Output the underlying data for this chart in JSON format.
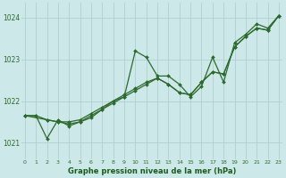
{
  "bg_color": "#cce8e8",
  "grid_color": "#b0d0d0",
  "line_color": "#2d6a2d",
  "xlabel": "Graphe pression niveau de la mer (hPa)",
  "xlabel_color": "#1a5c1a",
  "yticks": [
    1021,
    1022,
    1023,
    1024
  ],
  "xticks": [
    0,
    1,
    2,
    3,
    4,
    5,
    6,
    7,
    8,
    9,
    10,
    11,
    12,
    13,
    14,
    15,
    16,
    17,
    18,
    19,
    20,
    21,
    22,
    23
  ],
  "xlim": [
    -0.3,
    23.3
  ],
  "ylim": [
    1020.6,
    1024.35
  ],
  "series_volatile": {
    "x": [
      0,
      1,
      2,
      3,
      4,
      5,
      6,
      7,
      8,
      9,
      10,
      11,
      12,
      13,
      14,
      15,
      16,
      17,
      18,
      19,
      20,
      21,
      22,
      23
    ],
    "y": [
      1021.65,
      1021.65,
      1021.1,
      1021.55,
      1021.4,
      1021.5,
      1021.6,
      1021.8,
      1022.0,
      1022.1,
      1023.2,
      1023.05,
      1022.6,
      1022.6,
      1022.4,
      1022.1,
      1022.35,
      1023.05,
      1022.45,
      1023.4,
      1023.6,
      1023.85,
      1023.75,
      1024.05
    ]
  },
  "series_smooth1": {
    "x": [
      0,
      1,
      2,
      3,
      4,
      5,
      6,
      7,
      8,
      9,
      10,
      11,
      12,
      13,
      14,
      15,
      16,
      17,
      18,
      19,
      20,
      21,
      22,
      23
    ],
    "y": [
      1021.65,
      1021.65,
      1021.55,
      1021.5,
      1021.5,
      1021.55,
      1021.7,
      1021.85,
      1022.0,
      1022.15,
      1022.3,
      1022.45,
      1022.55,
      1022.4,
      1022.2,
      1022.15,
      1022.45,
      1022.7,
      1022.65,
      1023.3,
      1023.55,
      1023.75,
      1023.7,
      1024.05
    ]
  },
  "series_smooth2": {
    "x": [
      0,
      2,
      3,
      4,
      5,
      6,
      7,
      8,
      9,
      10,
      11,
      12,
      13,
      14,
      15,
      16,
      17,
      18,
      19,
      20,
      21,
      22,
      23
    ],
    "y": [
      1021.65,
      1021.55,
      1021.5,
      1021.45,
      1021.5,
      1021.65,
      1021.8,
      1021.95,
      1022.1,
      1022.25,
      1022.4,
      1022.55,
      1022.4,
      1022.2,
      1022.15,
      1022.45,
      1022.7,
      1022.65,
      1023.3,
      1023.55,
      1023.75,
      1023.7,
      1024.05
    ]
  }
}
